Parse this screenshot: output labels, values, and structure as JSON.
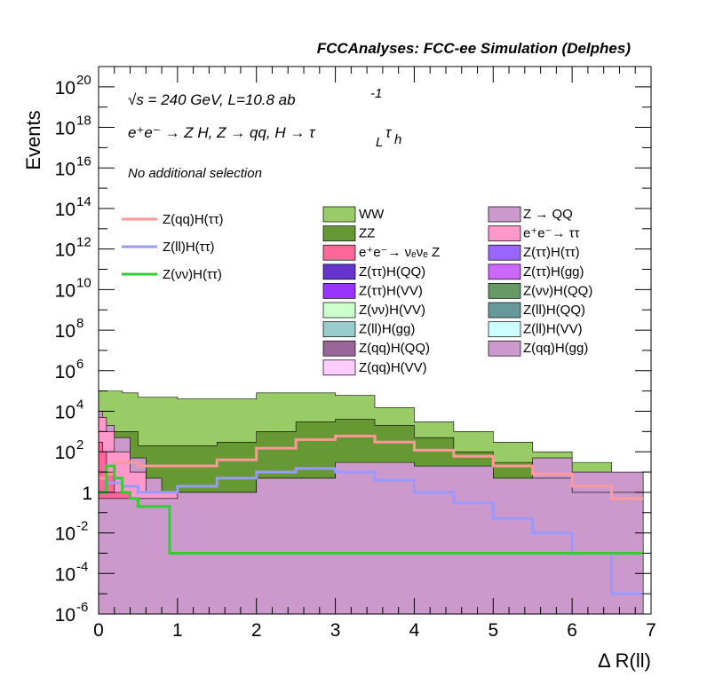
{
  "chart_data": {
    "type": "histogram",
    "title": "FCCAnalyses: FCC-ee Simulation (Delphes)",
    "xlabel": "Δ R(ll)",
    "ylabel": "Events",
    "xlim": [
      0,
      7
    ],
    "ylim": [
      1e-06,
      1e+21
    ],
    "ylog": true,
    "xticks": [
      "0",
      "1",
      "2",
      "3",
      "4",
      "5",
      "6",
      "7"
    ],
    "yticks": [
      {
        "base": "10",
        "exp": "-6",
        "value": 1e-06
      },
      {
        "base": "10",
        "exp": "-4",
        "value": 0.0001
      },
      {
        "base": "10",
        "exp": "-2",
        "value": 0.01
      },
      {
        "base": "1",
        "exp": "",
        "value": 1
      },
      {
        "base": "10",
        "exp": "2",
        "value": 100.0
      },
      {
        "base": "10",
        "exp": "4",
        "value": 10000.0
      },
      {
        "base": "10",
        "exp": "6",
        "value": 1000000.0
      },
      {
        "base": "10",
        "exp": "8",
        "value": 100000000.0
      },
      {
        "base": "10",
        "exp": "10",
        "value": 10000000000.0
      },
      {
        "base": "10",
        "exp": "12",
        "value": 1000000000000.0
      },
      {
        "base": "10",
        "exp": "14",
        "value": 100000000000000.0
      },
      {
        "base": "10",
        "exp": "16",
        "value": 1e+16
      },
      {
        "base": "10",
        "exp": "18",
        "value": 1e+18
      },
      {
        "base": "10",
        "exp": "20",
        "value": 1e+20
      }
    ],
    "annotations": {
      "energy": "√s = 240 GeV, L=10.8 ab",
      "energy_sup": "-1",
      "process": "e⁺e⁻ → Z H, Z  → qq, H  →  τ",
      "process_sub1": "L",
      "process_tau2": "τ",
      "process_sub2": "h",
      "selection": "No additional selection"
    },
    "stack": [
      {
        "name": "WW",
        "color": "#99CC66",
        "x": [
          0,
          0.1,
          0.3,
          0.5,
          1,
          1.5,
          2,
          2.5,
          3,
          3.5,
          4,
          4.5,
          5,
          5.5,
          6,
          6.5,
          6.9
        ],
        "y": [
          100000.0,
          100000.0,
          80000.0,
          50000.0,
          40000.0,
          40000.0,
          80000.0,
          80000.0,
          60000.0,
          15000.0,
          3000.0,
          1000.0,
          300.0,
          100.0,
          30,
          5,
          5
        ]
      },
      {
        "name": "ZZ",
        "color": "#669933",
        "x": [
          0,
          0.1,
          0.5,
          1,
          1.5,
          2,
          2.5,
          3,
          3.5,
          4,
          4.5,
          5,
          5.5,
          6,
          6.5,
          6.9
        ],
        "y": [
          1000.0,
          1000.0,
          200.0,
          200.0,
          300.0,
          1000.0,
          3000.0,
          4000.0,
          2000.0,
          500.0,
          100.0,
          30,
          10,
          5,
          2,
          2
        ]
      },
      {
        "name": "Z → QQ",
        "color": "#CC99CC",
        "x": [
          0,
          0.05,
          0.2,
          0.4,
          0.6,
          0.8,
          1,
          5,
          5.5,
          6,
          6.9
        ],
        "y": [
          10000.0,
          2000.0,
          500.0,
          50.0,
          5,
          1,
          0,
          0,
          50,
          10,
          0
        ]
      },
      {
        "name": "e⁺e⁻→ ττ",
        "color": "#FF99CC",
        "x": [
          0,
          0.1,
          0.2,
          0.4,
          0.6,
          1
        ],
        "y": [
          5000.0,
          1000.0,
          100.0,
          10.0,
          1,
          0
        ]
      },
      {
        "name": "e⁺e⁻→ νₑνₑ Z",
        "color": "#FF6699",
        "x": [
          0,
          0.05,
          0.1,
          0.2,
          0.4,
          1
        ],
        "y": [
          300.0,
          100.0,
          10.0,
          1,
          0.01,
          0
        ]
      },
      {
        "name": "Z(ττ)H(QQ)",
        "color": "#6633CC",
        "x": [
          0,
          1,
          2,
          3,
          4,
          5,
          6,
          6.9
        ],
        "y": [
          0.5,
          1,
          5,
          20,
          8,
          2,
          0.3,
          0.1
        ]
      },
      {
        "name": "Z(ττ)H(gg)",
        "color": "#CC66FF",
        "x": [
          0,
          1,
          2,
          3,
          4,
          5,
          6,
          6.9
        ],
        "y": [
          0.5,
          1,
          3,
          10,
          5,
          2,
          0.5,
          0.2
        ]
      },
      {
        "name": "Z(νν)H(QQ)",
        "color": "#669966",
        "x": [
          0,
          1,
          2,
          3,
          4,
          5,
          6,
          6.9
        ],
        "y": [
          0.01,
          0.01,
          0.01,
          0.1,
          0.05,
          0.01,
          0.001,
          0.001
        ]
      },
      {
        "name": "Z(ll)H(QQ)",
        "color": "#669999",
        "x": [
          0,
          1,
          2,
          3,
          4,
          5,
          6,
          6.9
        ],
        "y": [
          0.01,
          0.01,
          0.01,
          0.01,
          0.01,
          0.01,
          0.001,
          0.0001
        ]
      },
      {
        "name": "Z(ll)H(VV)",
        "color": "#CCFFFF",
        "x": [
          0,
          1,
          2,
          3,
          4,
          5,
          6,
          6.9
        ],
        "y": [
          0.05,
          0.1,
          0.5,
          1,
          0.5,
          0.2,
          0.05,
          0.02
        ]
      },
      {
        "name": "Z(qq)H(gg)",
        "color": "#CC99CC",
        "x": [
          0,
          1,
          2,
          3,
          4,
          5,
          6,
          6.9
        ],
        "y": [
          0.5,
          1,
          5,
          30,
          20,
          5,
          1,
          0.5
        ]
      }
    ],
    "lines": [
      {
        "name": "Z(qq)H(ττ)",
        "color": "#FF9999",
        "x": [
          0,
          0.1,
          0.2,
          0.5,
          1,
          1.5,
          2,
          2.5,
          3,
          3.5,
          4,
          4.5,
          5,
          5.5,
          6,
          6.5,
          6.9
        ],
        "y": [
          5,
          8,
          30,
          20,
          20,
          40,
          150,
          400,
          600,
          300,
          120,
          60,
          20,
          8,
          2,
          0.5,
          0.3
        ]
      },
      {
        "name": "Z(ll)H(ττ)",
        "color": "#9999FF",
        "x": [
          0,
          0.1,
          0.3,
          0.5,
          1,
          1.5,
          2,
          2.5,
          3,
          3.5,
          4,
          4.5,
          5,
          5.5,
          6,
          6.5,
          6.9
        ],
        "y": [
          1,
          3,
          2,
          1,
          2,
          5,
          10,
          15,
          10,
          4,
          1,
          0.3,
          0.05,
          0.01,
          0.001,
          1e-05,
          1e-06
        ]
      },
      {
        "name": "Z(νν)H(ττ)",
        "color": "#33CC33",
        "x": [
          0,
          0.1,
          0.2,
          0.3,
          0.4,
          0.5,
          0.9,
          1,
          2,
          2.5,
          3,
          3.5,
          4,
          6.9
        ],
        "y": [
          1,
          20,
          5,
          1,
          0.5,
          0.2,
          0.001,
          0.001,
          0.001,
          0.001,
          0.001,
          0.001,
          0.001,
          0.001
        ]
      }
    ],
    "legend_lines": [
      {
        "label": "Z(qq)H(ττ)",
        "color": "#FF9999"
      },
      {
        "label": "Z(ll)H(ττ)",
        "color": "#9999FF"
      },
      {
        "label": "Z(νν)H(ττ)",
        "color": "#33CC33"
      }
    ],
    "legend_col1": [
      {
        "label": "WW",
        "color": "#99CC66"
      },
      {
        "label": "ZZ",
        "color": "#669933"
      },
      {
        "label": "e⁺e⁻→ νₑνₑ Z",
        "color": "#FF6699"
      },
      {
        "label": "Z(ττ)H(QQ)",
        "color": "#6633CC"
      },
      {
        "label": "Z(ττ)H(VV)",
        "color": "#9933FF"
      },
      {
        "label": "Z(νν)H(VV)",
        "color": "#CCFFCC"
      },
      {
        "label": "Z(ll)H(gg)",
        "color": "#99CCCC"
      },
      {
        "label": "Z(qq)H(QQ)",
        "color": "#996699"
      },
      {
        "label": "Z(qq)H(VV)",
        "color": "#FFCCFF"
      }
    ],
    "legend_col2": [
      {
        "label": "Z → QQ",
        "color": "#CC99CC"
      },
      {
        "label": "e⁺e⁻→ ττ",
        "color": "#FF99CC"
      },
      {
        "label": "Z(ττ)H(ττ)",
        "color": "#9966FF"
      },
      {
        "label": "Z(ττ)H(gg)",
        "color": "#CC66FF"
      },
      {
        "label": "Z(νν)H(QQ)",
        "color": "#669966"
      },
      {
        "label": "Z(ll)H(QQ)",
        "color": "#669999"
      },
      {
        "label": "Z(ll)H(VV)",
        "color": "#CCFFFF"
      },
      {
        "label": "Z(qq)H(gg)",
        "color": "#CC99CC"
      }
    ]
  }
}
